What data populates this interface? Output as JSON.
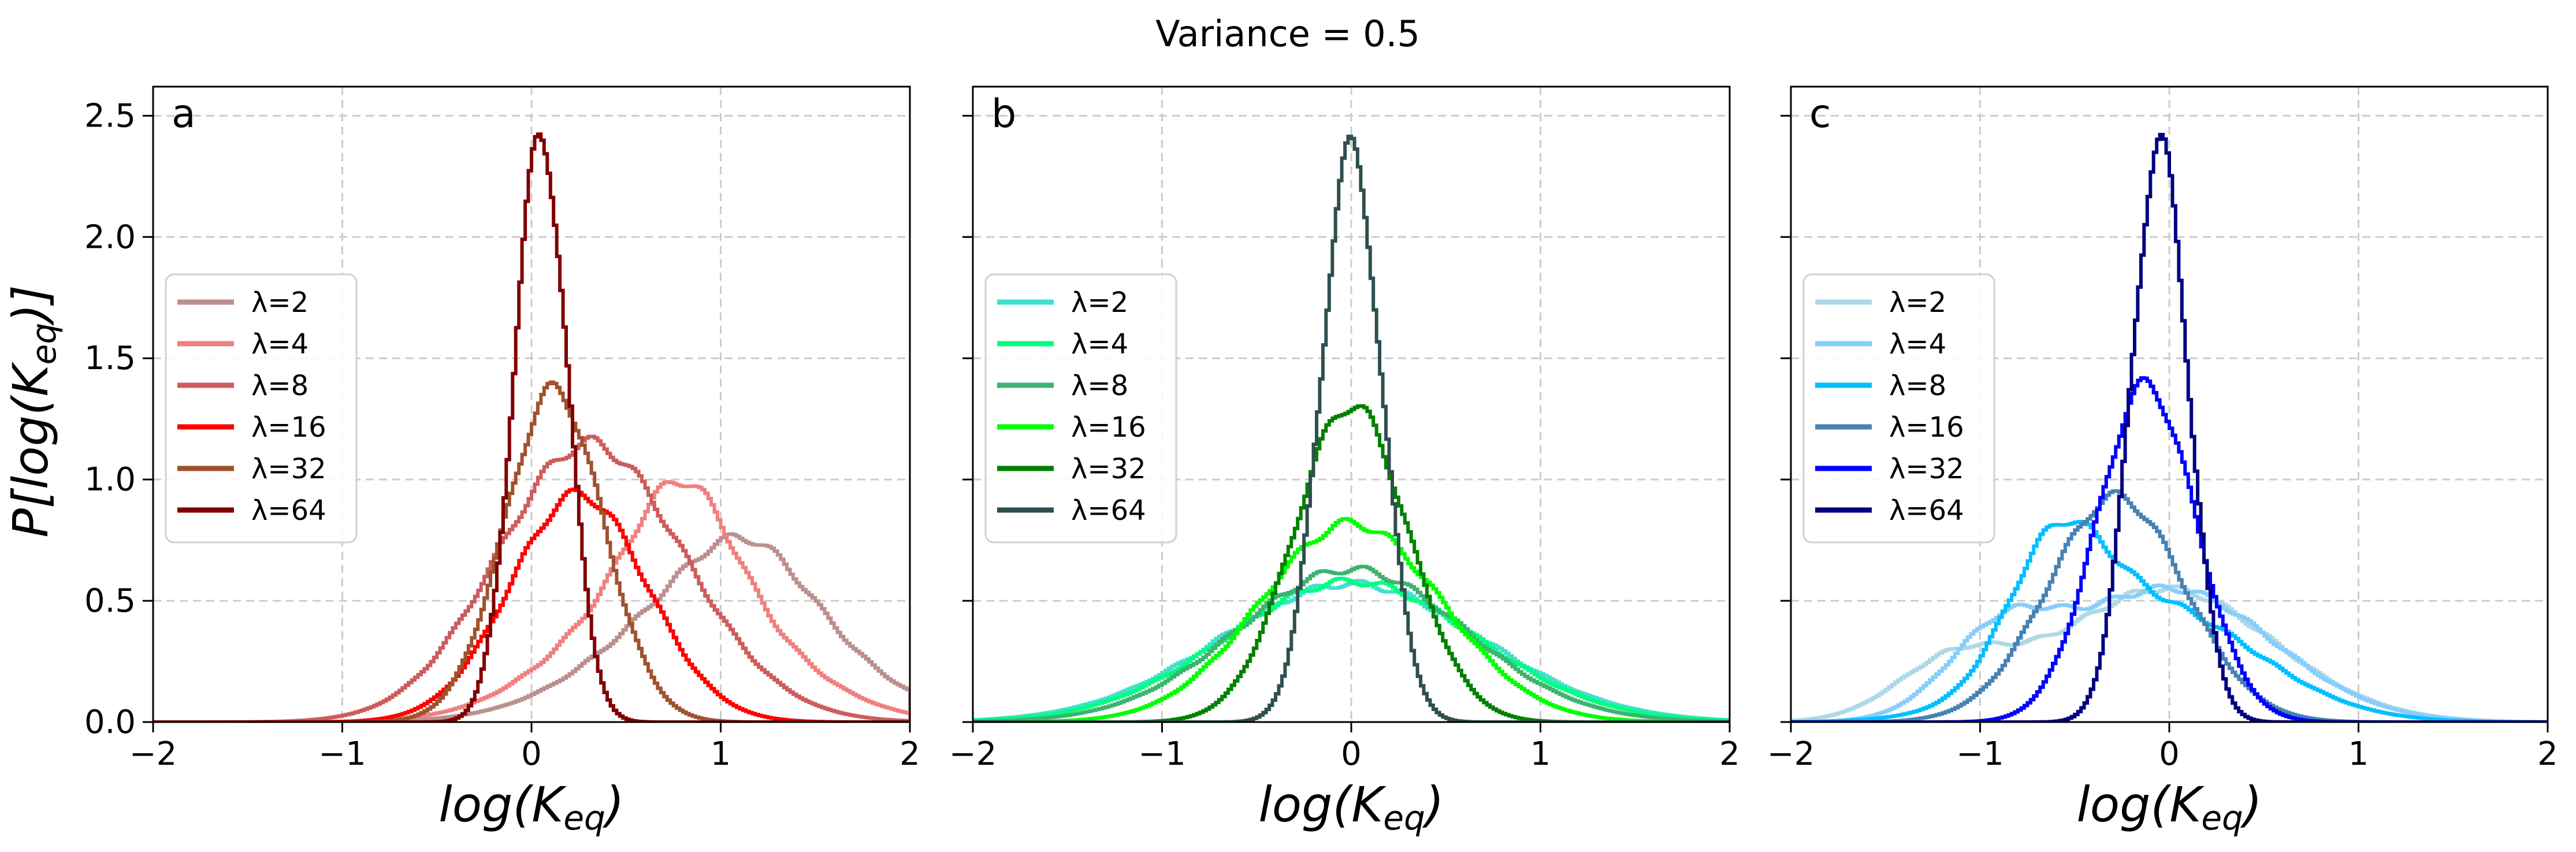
{
  "figure": {
    "suptitle": "Variance = 0.5",
    "y_label_parts": {
      "p": "P[",
      "log": "log(K",
      "sub": "eq",
      "close": ")]"
    },
    "x_label_parts": {
      "log": "log(K",
      "sub": "eq",
      "close": ")"
    }
  },
  "chart_data": [
    {
      "type": "line",
      "panel_label": "a",
      "xlim": [
        -2,
        2
      ],
      "ylim": [
        0,
        2.62
      ],
      "x_ticks": [
        "−2",
        "−1",
        "0",
        "1",
        "2"
      ],
      "y_ticks": [
        "0.0",
        "0.5",
        "1.0",
        "1.5",
        "2.0",
        "2.5"
      ],
      "grid": true,
      "legend_position": "center-left",
      "series": [
        {
          "name": "λ=2",
          "color": "#bc8f8f",
          "components": [
            [
              0.55,
              1.02,
              0.57
            ],
            [
              0.22,
              1.15,
              0.3
            ]
          ]
        },
        {
          "name": "λ=4",
          "color": "#f08080",
          "components": [
            [
              0.58,
              0.75,
              0.53
            ],
            [
              0.42,
              0.8,
              0.25
            ]
          ]
        },
        {
          "name": "λ=8",
          "color": "#cd5c5c",
          "components": [
            [
              0.57,
              0.45,
              0.5
            ],
            [
              0.62,
              0.2,
              0.45
            ]
          ]
        },
        {
          "name": "λ=16",
          "color": "#ff0000",
          "components": [
            [
              0.94,
              0.25,
              0.36
            ]
          ]
        },
        {
          "name": "λ=32",
          "color": "#a0522d",
          "components": [
            [
              1.37,
              0.12,
              0.26
            ]
          ]
        },
        {
          "name": "λ=64",
          "color": "#800000",
          "components": [
            [
              2.42,
              0.05,
              0.14
            ]
          ]
        }
      ]
    },
    {
      "type": "line",
      "panel_label": "b",
      "xlim": [
        -2,
        2
      ],
      "ylim": [
        0,
        2.62
      ],
      "x_ticks": [
        "−2",
        "−1",
        "0",
        "1",
        "2"
      ],
      "y_ticks": [
        "0.0",
        "0.5",
        "1.0",
        "1.5",
        "2.0",
        "2.5"
      ],
      "grid": true,
      "legend_position": "center-left",
      "series": [
        {
          "name": "λ=2",
          "color": "#40e0d0",
          "components": [
            [
              0.57,
              0.0,
              0.69
            ]
          ]
        },
        {
          "name": "λ=4",
          "color": "#00ff7f",
          "components": [
            [
              0.58,
              0.0,
              0.66
            ]
          ]
        },
        {
          "name": "λ=8",
          "color": "#3cb371",
          "components": [
            [
              0.63,
              0.0,
              0.6
            ]
          ]
        },
        {
          "name": "λ=16",
          "color": "#00ff00",
          "components": [
            [
              0.82,
              0.0,
              0.48
            ]
          ]
        },
        {
          "name": "λ=32",
          "color": "#008000",
          "components": [
            [
              1.31,
              0.0,
              0.3
            ]
          ]
        },
        {
          "name": "λ=64",
          "color": "#2f4f4f",
          "components": [
            [
              2.36,
              0.0,
              0.16
            ]
          ]
        }
      ]
    },
    {
      "type": "line",
      "panel_label": "c",
      "xlim": [
        -2,
        2
      ],
      "ylim": [
        0,
        2.62
      ],
      "x_ticks": [
        "−2",
        "−1",
        "0",
        "1",
        "2"
      ],
      "y_ticks": [
        "0.0",
        "0.5",
        "1.0",
        "1.5",
        "2.0",
        "2.5"
      ],
      "grid": true,
      "legend_position": "center-left",
      "series": [
        {
          "name": "λ=2",
          "color": "#add8e6",
          "components": [
            [
              0.55,
              -0.02,
              0.57
            ],
            [
              0.22,
              -1.15,
              0.3
            ]
          ]
        },
        {
          "name": "λ=4",
          "color": "#87cefa",
          "components": [
            [
              0.55,
              0.0,
              0.55
            ],
            [
              0.3,
              -0.9,
              0.28
            ]
          ]
        },
        {
          "name": "λ=8",
          "color": "#00bfff",
          "components": [
            [
              0.48,
              -0.1,
              0.55
            ],
            [
              0.5,
              -0.6,
              0.25
            ]
          ]
        },
        {
          "name": "λ=16",
          "color": "#4682b4",
          "components": [
            [
              0.93,
              -0.28,
              0.36
            ]
          ]
        },
        {
          "name": "λ=32",
          "color": "#0000ff",
          "components": [
            [
              1.39,
              -0.12,
              0.26
            ]
          ]
        },
        {
          "name": "λ=64",
          "color": "#000080",
          "components": [
            [
              2.38,
              -0.05,
              0.15
            ]
          ]
        }
      ]
    }
  ]
}
